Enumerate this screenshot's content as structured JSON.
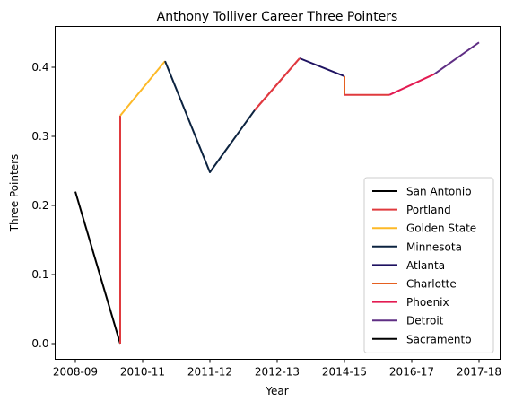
{
  "chart_data": {
    "type": "line",
    "title": "Anthony Tolliver Career Three Pointers",
    "xlabel": "Year",
    "ylabel": "Three Pointers",
    "x_ticks": [
      "2008-09",
      "2010-11",
      "2011-12",
      "2012-13",
      "2014-15",
      "2016-17",
      "2017-18"
    ],
    "y_ticks": [
      "0.0",
      "0.1",
      "0.2",
      "0.3",
      "0.4"
    ],
    "ylim": [
      -0.022,
      0.46
    ],
    "grid": false,
    "legend_position": "lower right",
    "series": [
      {
        "name": "San Antonio",
        "color": "#000000",
        "points": [
          [
            2008.5,
            0.22
          ],
          [
            2009.5,
            0.0
          ]
        ]
      },
      {
        "name": "Portland",
        "color": "#e03a3e",
        "points": [
          [
            2009.5,
            0.0
          ],
          [
            2009.5,
            0.33
          ]
        ]
      },
      {
        "name": "Golden State",
        "color": "#fdb927",
        "points": [
          [
            2009.5,
            0.33
          ],
          [
            2010.5,
            0.409
          ]
        ]
      },
      {
        "name": "Minnesota",
        "color": "#0c2340",
        "points": [
          [
            2010.5,
            0.409
          ],
          [
            2011.5,
            0.248
          ],
          [
            2012.5,
            0.338
          ]
        ]
      },
      {
        "name": "Atlanta",
        "color": "#1d1160",
        "points": [
          [
            2013.5,
            0.413
          ],
          [
            2014.5,
            0.387
          ]
        ]
      },
      {
        "name": "Charlotte",
        "color": "#e56020",
        "points": [
          [
            2014.5,
            0.387
          ],
          [
            2014.5,
            0.36
          ]
        ]
      },
      {
        "name": "Phoenix",
        "color": "#e31b52",
        "points": [
          [
            2012.5,
            0.338
          ],
          [
            2013.5,
            0.413
          ]
        ]
      },
      {
        "name": "Detroit",
        "color": "#5f2e84",
        "points": [
          [
            2016.5,
            0.39
          ],
          [
            2017.5,
            0.436
          ]
        ]
      },
      {
        "name": "Sacramento",
        "color": "#000000",
        "points": []
      }
    ],
    "overlay_segments": [
      {
        "color": "#e03a3e",
        "points": [
          [
            2012.5,
            0.338
          ],
          [
            2013.5,
            0.413
          ]
        ]
      },
      {
        "color": "#e03a3e",
        "points": [
          [
            2014.5,
            0.36
          ],
          [
            2015.5,
            0.36
          ]
        ]
      },
      {
        "color": "#e31b52",
        "points": [
          [
            2015.5,
            0.36
          ],
          [
            2016.5,
            0.39
          ]
        ]
      }
    ]
  }
}
